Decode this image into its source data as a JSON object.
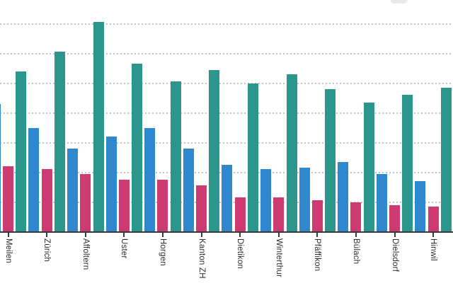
{
  "chart_data": {
    "type": "bar",
    "orientation": "vertical-grouped",
    "title": "",
    "xlabel": "",
    "ylabel": "",
    "categories": [
      "Meilen",
      "Zürich",
      "Affoltern",
      "Uster",
      "Horgen",
      "Kanton ZH",
      "Dietikon",
      "Winterthur",
      "Pfäffikon",
      "Bülach",
      "Dielsdorf",
      "Hinwil"
    ],
    "series": [
      {
        "name": "series-blue",
        "color": "#2f87ce",
        "values": [
          43,
          35,
          28,
          32,
          35,
          28,
          22.5,
          21,
          21.5,
          23.5,
          19.5,
          17
        ]
      },
      {
        "name": "series-pink",
        "color": "#ce3a72",
        "values": [
          22,
          21,
          19.5,
          17.5,
          17.5,
          15.5,
          11.5,
          11.5,
          10.5,
          10,
          9,
          8.5
        ]
      },
      {
        "name": "series-teal",
        "color": "#2b968b",
        "values": [
          54,
          60.5,
          70.5,
          56.5,
          50.5,
          54.5,
          50,
          53,
          48,
          43.5,
          46,
          48.5
        ]
      }
    ],
    "ylim": [
      0,
      78
    ],
    "gridline_values": [
      10,
      20,
      30,
      40,
      50,
      60,
      70
    ],
    "grid": "horizontal-dotted",
    "legend_position": "not-visible-cropped",
    "notes": "Chart is cropped: no title, legend or y-axis tick labels visible; first blue bar clipped at left edge; values estimated at 10 units per gridline",
    "axis_color": "#3a3a3a",
    "gridline_color": "#c3c3c3",
    "label_color": "#2d2d2d",
    "background_color": "#ffffff"
  },
  "cropped_element": {
    "description": "partial light-gray rounded UI element clipped at top edge",
    "color": "#eaeaea"
  }
}
